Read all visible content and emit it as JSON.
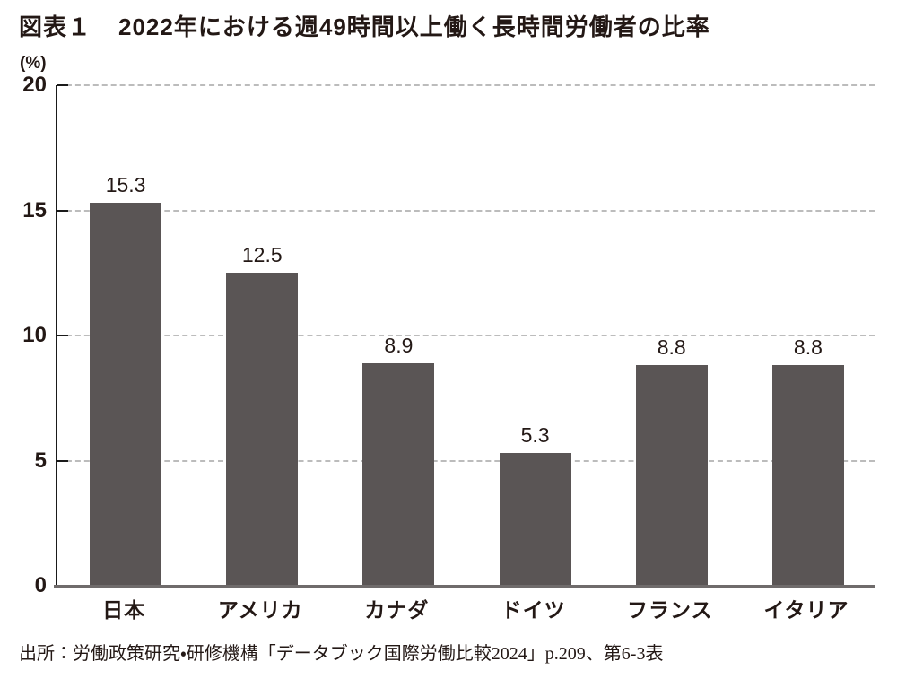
{
  "title": {
    "prefix": "図表１",
    "text": "2022年における週49時間以上働く長時間労働者の比率"
  },
  "chart_data": {
    "type": "bar",
    "title": "2022年における週49時間以上働く長時間労働者の比率",
    "categories": [
      "日本",
      "アメリカ",
      "カナダ",
      "ドイツ",
      "フランス",
      "イタリア"
    ],
    "values": [
      15.3,
      12.5,
      8.9,
      5.3,
      8.8,
      8.8
    ],
    "data_labels": [
      "15.3",
      "12.5",
      "8.9",
      "5.3",
      "8.8",
      "8.8"
    ],
    "unit_label": "(%)",
    "xlabel": "",
    "ylabel": "(%)",
    "ylim": [
      0,
      20
    ],
    "y_ticks": [
      0,
      5,
      10,
      15,
      20
    ],
    "grid": "horizontal-dashed",
    "legend": "none",
    "bar_color": "#5a5555",
    "gridline_color": "#bcbcbc",
    "baseline_color": "#6f6b6b",
    "axis_color": "#1a1a1a"
  },
  "source": "出所：労働政策研究・研修機構「データブック国際労働比較2024」p.209、第6-3表"
}
